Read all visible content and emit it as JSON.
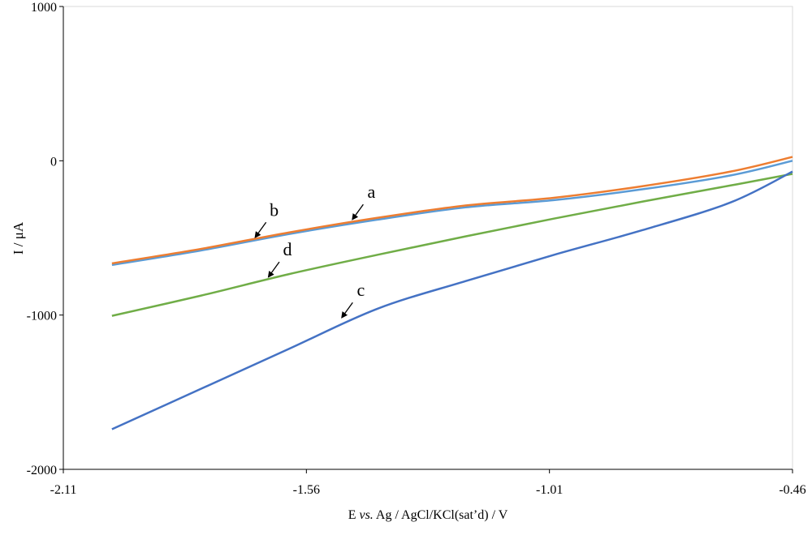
{
  "chart_data": {
    "type": "line",
    "title": "",
    "xlabel_parts": [
      "E ",
      "vs.",
      " Ag / AgCl/KCl(sat’d) / V"
    ],
    "xlabel": "E vs. Ag / AgCl/KCl(sat’d) / V",
    "ylabel": "I / μA",
    "xlim": [
      -2.11,
      -0.46
    ],
    "ylim": [
      -2000,
      1000
    ],
    "xticks": [
      -2.11,
      -1.56,
      -1.01,
      -0.46
    ],
    "xtick_labels": [
      "-2.11",
      "-1.56",
      "-1.01",
      "-0.46"
    ],
    "yticks": [
      1000,
      0,
      -1000,
      -2000
    ],
    "ytick_labels": [
      "1000",
      "0",
      "-1000",
      "-2000"
    ],
    "grid": false,
    "series": [
      {
        "name": "b",
        "color": "#5b9bd5",
        "points": [
          [
            -2.0,
            -675
          ],
          [
            -1.8,
            -582
          ],
          [
            -1.6,
            -475
          ],
          [
            -1.4,
            -382
          ],
          [
            -1.2,
            -302
          ],
          [
            -1.0,
            -255
          ],
          [
            -0.8,
            -185
          ],
          [
            -0.6,
            -95
          ],
          [
            -0.46,
            0
          ]
        ]
      },
      {
        "name": "a",
        "color": "#ed7d31",
        "points": [
          [
            -2.0,
            -665
          ],
          [
            -1.8,
            -572
          ],
          [
            -1.6,
            -465
          ],
          [
            -1.4,
            -370
          ],
          [
            -1.2,
            -290
          ],
          [
            -1.0,
            -240
          ],
          [
            -0.8,
            -165
          ],
          [
            -0.6,
            -70
          ],
          [
            -0.46,
            25
          ]
        ]
      },
      {
        "name": "d",
        "color": "#70ad47",
        "points": [
          [
            -2.0,
            -1005
          ],
          [
            -1.8,
            -875
          ],
          [
            -1.6,
            -735
          ],
          [
            -1.4,
            -610
          ],
          [
            -1.2,
            -490
          ],
          [
            -1.0,
            -375
          ],
          [
            -0.8,
            -265
          ],
          [
            -0.6,
            -160
          ],
          [
            -0.46,
            -85
          ]
        ]
      },
      {
        "name": "c",
        "color": "#4472c4",
        "points": [
          [
            -2.0,
            -1740
          ],
          [
            -1.8,
            -1480
          ],
          [
            -1.6,
            -1220
          ],
          [
            -1.4,
            -960
          ],
          [
            -1.2,
            -780
          ],
          [
            -1.0,
            -610
          ],
          [
            -0.8,
            -450
          ],
          [
            -0.6,
            -270
          ],
          [
            -0.46,
            -70
          ]
        ]
      }
    ],
    "annotations": [
      {
        "text": "a",
        "target": [
          -1.457,
          -388
        ]
      },
      {
        "text": "b",
        "target": [
          -1.677,
          -504
        ]
      },
      {
        "text": "d",
        "target": [
          -1.647,
          -761
        ]
      },
      {
        "text": "c",
        "target": [
          -1.481,
          -1024
        ]
      }
    ]
  }
}
